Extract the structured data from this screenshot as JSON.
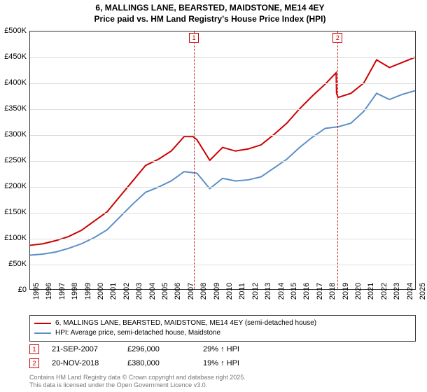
{
  "title": {
    "line1": "6, MALLINGS LANE, BEARSTED, MAIDSTONE, ME14 4EY",
    "line2": "Price paid vs. HM Land Registry's House Price Index (HPI)",
    "fontsize": 12,
    "color": "#000000"
  },
  "chart": {
    "type": "line",
    "background_color": "#ffffff",
    "grid_color": "#dddddd",
    "border_color": "#333333",
    "x": {
      "min": 1995,
      "max": 2025,
      "ticks": [
        1995,
        1996,
        1997,
        1998,
        1999,
        2000,
        2001,
        2002,
        2003,
        2004,
        2005,
        2006,
        2007,
        2008,
        2009,
        2010,
        2011,
        2012,
        2013,
        2014,
        2015,
        2016,
        2017,
        2018,
        2019,
        2020,
        2021,
        2022,
        2023,
        2024,
        2025
      ],
      "label_fontsize": 11
    },
    "y": {
      "min": 0,
      "max": 500000,
      "ticks": [
        0,
        50000,
        100000,
        150000,
        200000,
        250000,
        300000,
        350000,
        400000,
        450000,
        500000
      ],
      "tick_labels": [
        "£0",
        "£50K",
        "£100K",
        "£150K",
        "£200K",
        "£250K",
        "£300K",
        "£350K",
        "£400K",
        "£450K",
        "£500K"
      ],
      "label_fontsize": 11
    },
    "series": [
      {
        "name": "6, MALLINGS LANE, BEARSTED, MAIDSTONE, ME14 4EY (semi-detached house)",
        "color": "#cc0000",
        "line_width": 2,
        "data": [
          [
            1995,
            85000
          ],
          [
            1996,
            88000
          ],
          [
            1997,
            94000
          ],
          [
            1998,
            102000
          ],
          [
            1999,
            114000
          ],
          [
            2000,
            132000
          ],
          [
            2001,
            150000
          ],
          [
            2002,
            180000
          ],
          [
            2003,
            210000
          ],
          [
            2004,
            240000
          ],
          [
            2005,
            252000
          ],
          [
            2006,
            268000
          ],
          [
            2007,
            296000
          ],
          [
            2007.7,
            296000
          ],
          [
            2008,
            290000
          ],
          [
            2009,
            250000
          ],
          [
            2010,
            275000
          ],
          [
            2011,
            268000
          ],
          [
            2012,
            272000
          ],
          [
            2013,
            280000
          ],
          [
            2014,
            300000
          ],
          [
            2015,
            322000
          ],
          [
            2016,
            350000
          ],
          [
            2017,
            375000
          ],
          [
            2018,
            398000
          ],
          [
            2018.85,
            420000
          ],
          [
            2018.88,
            380000
          ],
          [
            2019,
            372000
          ],
          [
            2020,
            380000
          ],
          [
            2021,
            400000
          ],
          [
            2022,
            445000
          ],
          [
            2023,
            430000
          ],
          [
            2024,
            440000
          ],
          [
            2025,
            450000
          ]
        ]
      },
      {
        "name": "HPI: Average price, semi-detached house, Maidstone",
        "color": "#5b8fc7",
        "line_width": 2,
        "data": [
          [
            1995,
            66000
          ],
          [
            1996,
            68000
          ],
          [
            1997,
            72000
          ],
          [
            1998,
            79000
          ],
          [
            1999,
            88000
          ],
          [
            2000,
            100000
          ],
          [
            2001,
            115000
          ],
          [
            2002,
            140000
          ],
          [
            2003,
            165000
          ],
          [
            2004,
            188000
          ],
          [
            2005,
            198000
          ],
          [
            2006,
            210000
          ],
          [
            2007,
            228000
          ],
          [
            2008,
            225000
          ],
          [
            2009,
            195000
          ],
          [
            2010,
            215000
          ],
          [
            2011,
            210000
          ],
          [
            2012,
            212000
          ],
          [
            2013,
            218000
          ],
          [
            2014,
            235000
          ],
          [
            2015,
            252000
          ],
          [
            2016,
            275000
          ],
          [
            2017,
            295000
          ],
          [
            2018,
            312000
          ],
          [
            2019,
            315000
          ],
          [
            2020,
            322000
          ],
          [
            2021,
            345000
          ],
          [
            2022,
            380000
          ],
          [
            2023,
            368000
          ],
          [
            2024,
            378000
          ],
          [
            2025,
            385000
          ]
        ]
      }
    ],
    "markers": [
      {
        "id": "1",
        "x": 2007.72,
        "date": "21-SEP-2007",
        "price": "£296,000",
        "delta": "29% ↑ HPI"
      },
      {
        "id": "2",
        "x": 2018.88,
        "date": "20-NOV-2018",
        "price": "£380,000",
        "delta": "19% ↑ HPI"
      }
    ]
  },
  "legend": {
    "border_color": "#333333",
    "fontsize": 10
  },
  "attribution": {
    "line1": "Contains HM Land Registry data © Crown copyright and database right 2025.",
    "line2": "This data is licensed under the Open Government Licence v3.0.",
    "color": "#777777",
    "fontsize": 9
  }
}
